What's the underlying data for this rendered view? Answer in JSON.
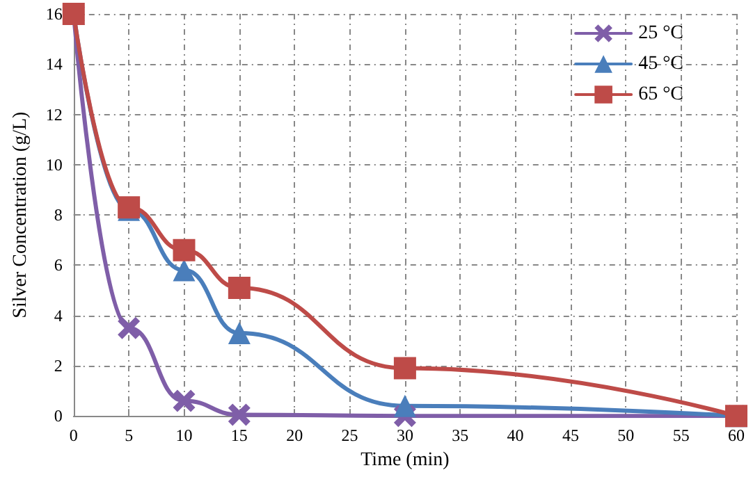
{
  "chart_data": {
    "type": "line",
    "xlabel": "Time (min)",
    "ylabel": "Silver Concentration (g/L)",
    "x": [
      0,
      5,
      10,
      15,
      30,
      60
    ],
    "series": [
      {
        "name": "25 °C",
        "color": "#7f5ea8",
        "marker": "cross",
        "values": [
          16,
          3.5,
          0.6,
          0.05,
          0,
          0
        ]
      },
      {
        "name": "45 °C",
        "color": "#4a7ebb",
        "marker": "triangle",
        "values": [
          16,
          8.2,
          5.8,
          3.3,
          0.4,
          0
        ]
      },
      {
        "name": "65 °C",
        "color": "#be4b48",
        "marker": "square",
        "values": [
          16,
          8.3,
          6.6,
          5.1,
          1.9,
          0
        ]
      }
    ],
    "xlim": [
      0,
      60
    ],
    "xticks": [
      0,
      5,
      10,
      15,
      20,
      25,
      30,
      35,
      40,
      45,
      50,
      55,
      60
    ],
    "ylim": [
      0,
      16
    ],
    "yticks": [
      0,
      2,
      4,
      6,
      8,
      10,
      12,
      14,
      16
    ],
    "grid": true,
    "legend": "top right",
    "line_style": "solid"
  }
}
